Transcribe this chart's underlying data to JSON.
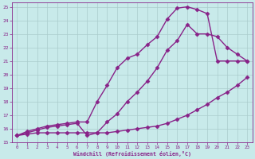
{
  "xlabel": "Windchill (Refroidissement éolien,°C)",
  "bg_color": "#c8eaea",
  "line_color": "#882288",
  "grid_color": "#aacccc",
  "xlim": [
    -0.5,
    23.5
  ],
  "ylim": [
    15,
    25.3
  ],
  "yticks": [
    15,
    16,
    17,
    18,
    19,
    20,
    21,
    22,
    23,
    24,
    25
  ],
  "xticks": [
    0,
    1,
    2,
    3,
    4,
    5,
    6,
    7,
    8,
    9,
    10,
    11,
    12,
    13,
    14,
    15,
    16,
    17,
    18,
    19,
    20,
    21,
    22,
    23
  ],
  "line1_x": [
    0,
    1,
    2,
    3,
    4,
    5,
    6,
    7,
    8,
    9,
    10,
    11,
    12,
    13,
    14,
    15,
    16,
    17,
    18,
    19,
    20,
    21,
    22,
    23
  ],
  "line1_y": [
    15.5,
    15.6,
    15.7,
    15.7,
    15.7,
    15.7,
    15.7,
    15.7,
    15.7,
    15.7,
    15.8,
    15.9,
    16.0,
    16.1,
    16.2,
    16.4,
    16.7,
    17.0,
    17.4,
    17.8,
    18.3,
    18.7,
    19.2,
    19.8
  ],
  "line2_x": [
    0,
    1,
    2,
    3,
    4,
    5,
    6,
    7,
    8,
    9,
    10,
    11,
    12,
    13,
    14,
    15,
    16,
    17,
    18,
    19,
    20,
    21,
    22,
    23
  ],
  "line2_y": [
    15.5,
    15.7,
    15.9,
    16.1,
    16.2,
    16.3,
    16.4,
    15.5,
    15.7,
    16.5,
    17.1,
    18.0,
    18.7,
    19.5,
    20.5,
    21.8,
    22.5,
    23.7,
    23.0,
    23.0,
    22.8,
    22.0,
    21.5,
    21.0
  ],
  "line3_x": [
    0,
    1,
    2,
    3,
    4,
    5,
    6,
    7,
    8,
    9,
    10,
    11,
    12,
    13,
    14,
    15,
    16,
    17,
    18,
    19,
    20,
    21,
    22,
    23
  ],
  "line3_y": [
    15.5,
    15.8,
    16.0,
    16.2,
    16.3,
    16.4,
    16.5,
    16.5,
    18.0,
    19.2,
    20.5,
    21.2,
    21.5,
    22.2,
    22.8,
    24.1,
    24.9,
    25.0,
    24.8,
    24.5,
    21.0,
    21.0,
    21.0,
    21.0
  ],
  "marker": "D",
  "markersize": 2.5,
  "linewidth": 1.0
}
